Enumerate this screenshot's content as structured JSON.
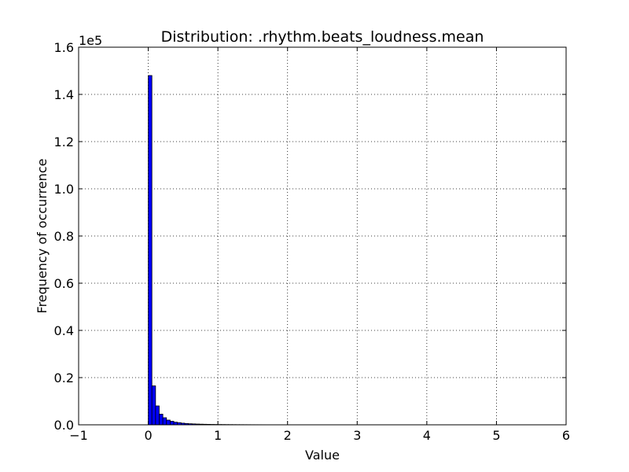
{
  "chart_data": {
    "type": "bar",
    "title": "Distribution: .rhythm.beats_loudness.mean",
    "xlabel": "Value",
    "ylabel": "Frequency of occurrence",
    "y_multiplier_label": "1e5",
    "xlim": [
      -1,
      6
    ],
    "ylim": [
      0,
      160000
    ],
    "x_ticks": [
      -1,
      0,
      1,
      2,
      3,
      4,
      5,
      6
    ],
    "x_tick_labels": [
      "−1",
      "0",
      "1",
      "2",
      "3",
      "4",
      "5",
      "6"
    ],
    "y_ticks": [
      0,
      20000,
      40000,
      60000,
      80000,
      100000,
      120000,
      140000,
      160000
    ],
    "y_tick_labels": [
      "0.0",
      "0.2",
      "0.4",
      "0.6",
      "0.8",
      "1.0",
      "1.2",
      "1.4",
      "1.6"
    ],
    "grid": true,
    "bar_color": "#0000ff",
    "bin_start": 0.0,
    "bin_width": 0.0524,
    "values": [
      148000,
      16500,
      8000,
      4500,
      3000,
      2000,
      1500,
      1100,
      900,
      700,
      550,
      450,
      380,
      320,
      270,
      230,
      200,
      170,
      150,
      130,
      115,
      100,
      90,
      80,
      72,
      65,
      58,
      52,
      47,
      43,
      39,
      36,
      33,
      30,
      28,
      26,
      24,
      22,
      20,
      19,
      18,
      17,
      16,
      15,
      14,
      13,
      12,
      11,
      11,
      10,
      10,
      9,
      9,
      8,
      8,
      8,
      7,
      7,
      7,
      6,
      6,
      6,
      6,
      5,
      5,
      5,
      5,
      5,
      4,
      4,
      4,
      4,
      4,
      4,
      3,
      3,
      3,
      3,
      3,
      3,
      3,
      3,
      2,
      2,
      2,
      2,
      2,
      2,
      2,
      2,
      2,
      2,
      2,
      2,
      1,
      1,
      1,
      1,
      1,
      1
    ]
  }
}
